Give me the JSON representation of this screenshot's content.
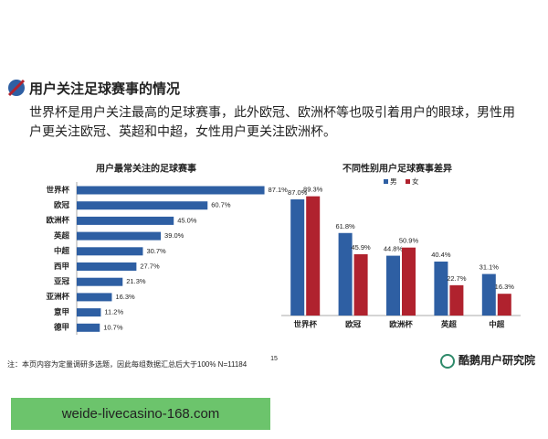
{
  "header": {
    "title": "用户关注足球赛事的情况",
    "body_lines": [
      "世界杯是用户关注最高的足球赛事，此外欧冠、欧洲杯等也吸引着用户的眼球，男性用",
      "户更关注欧冠、英超和中超，女性用户更关注欧洲杯。"
    ]
  },
  "chart_data": [
    {
      "type": "bar",
      "horizontal": true,
      "title": "用户最常关注的足球赛事",
      "categories": [
        "世界杯",
        "欧冠",
        "欧洲杯",
        "英超",
        "中超",
        "西甲",
        "亚冠",
        "亚洲杯",
        "意甲",
        "德甲"
      ],
      "values": [
        87.1,
        60.7,
        45.0,
        39.0,
        30.7,
        27.7,
        21.3,
        16.3,
        11.2,
        10.7
      ],
      "value_labels": [
        "87.1%",
        "60.7%",
        "45.0%",
        "39.0%",
        "30.7%",
        "27.7%",
        "21.3%",
        "16.3%",
        "11.2%",
        "10.7%"
      ],
      "color": "#2e5fa3",
      "xlim": [
        0,
        100
      ]
    },
    {
      "type": "bar",
      "title": "不同性别用户足球赛事差异",
      "categories": [
        "世界杯",
        "欧冠",
        "欧洲杯",
        "英超",
        "中超"
      ],
      "series": [
        {
          "name": "男",
          "color": "#2e5fa3",
          "values": [
            87.0,
            61.8,
            44.8,
            40.4,
            31.1
          ],
          "value_labels": [
            "87.0%",
            "61.8%",
            "44.8%",
            "40.4%",
            "31.1%"
          ]
        },
        {
          "name": "女",
          "color": "#b0222e",
          "values": [
            89.3,
            45.9,
            50.9,
            22.7,
            16.3
          ],
          "value_labels": [
            "89.3%",
            "45.9%",
            "50.9%",
            "22.7%",
            "16.3%"
          ]
        }
      ],
      "ylim": [
        0,
        100
      ],
      "legend": "top"
    }
  ],
  "footnote": "注：本页内容为定量调研多选题，因此每组数据汇总后大于100%  N=11184",
  "page_number": "15",
  "brand": "酷鹅用户研究院",
  "watermark": "weide-livecasino-168.com"
}
